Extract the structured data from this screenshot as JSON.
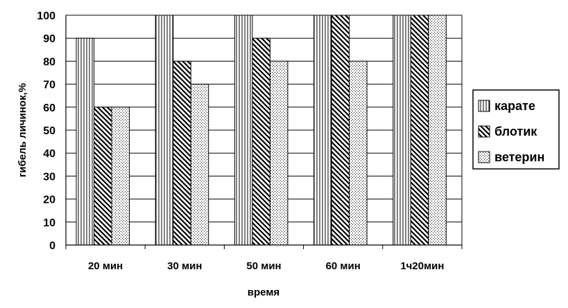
{
  "chart_data": {
    "type": "bar",
    "title": "",
    "xlabel": "время",
    "ylabel": "гибель личинок,%",
    "categories": [
      "20 мин",
      "30 мин",
      "50 мин",
      "60 мин",
      "1ч20мин"
    ],
    "ylim": [
      0,
      100
    ],
    "yticks": [
      0,
      10,
      20,
      30,
      40,
      50,
      60,
      70,
      80,
      90,
      100
    ],
    "grid": true,
    "legend_position": "right",
    "series": [
      {
        "name": "карате",
        "pattern": "vertical-lines",
        "values": [
          90,
          100,
          100,
          100,
          100
        ]
      },
      {
        "name": "блотик",
        "pattern": "diagonal-lines",
        "values": [
          60,
          80,
          90,
          100,
          100
        ]
      },
      {
        "name": "ветерин",
        "pattern": "dots",
        "values": [
          60,
          70,
          80,
          80,
          100
        ]
      }
    ],
    "colors": {
      "bar_stroke": "#000000",
      "grid": "#000000",
      "background": "#ffffff"
    }
  }
}
